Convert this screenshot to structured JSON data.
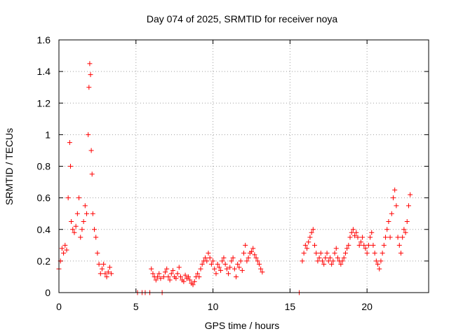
{
  "chart_data": {
    "type": "scatter",
    "title": "Day 074 of 2025, SRMTID for receiver noya",
    "xlabel": "GPS time / hours",
    "ylabel": "SRMTID / TECUs",
    "xlim": [
      0,
      24
    ],
    "ylim": [
      0,
      1.6
    ],
    "xticks": [
      0,
      5,
      10,
      15,
      20
    ],
    "xtick_labels": [
      "0",
      "5",
      "10",
      "15",
      "20"
    ],
    "yticks": [
      0,
      0.2,
      0.4,
      0.6,
      0.8,
      1,
      1.2,
      1.4,
      1.6
    ],
    "ytick_labels": [
      "0",
      "0.2",
      "0.4",
      "0.6",
      "0.8",
      "1",
      "1.2",
      "1.4",
      "1.6"
    ],
    "grid": true,
    "marker": "+",
    "color": "#ff0000",
    "series": [
      {
        "name": "SRMTID",
        "x": [
          0.0,
          0.1,
          0.2,
          0.3,
          0.4,
          0.5,
          0.6,
          0.7,
          0.75,
          0.8,
          0.9,
          1.0,
          1.1,
          1.2,
          1.3,
          1.4,
          1.5,
          1.6,
          1.7,
          1.8,
          1.9,
          1.95,
          2.0,
          2.05,
          2.1,
          2.15,
          2.2,
          2.3,
          2.4,
          2.5,
          2.6,
          2.7,
          2.8,
          2.9,
          3.0,
          3.1,
          3.2,
          3.3,
          3.4,
          5.1,
          5.4,
          5.6,
          5.9,
          6.0,
          6.1,
          6.2,
          6.3,
          6.4,
          6.5,
          6.6,
          6.7,
          6.8,
          6.9,
          7.0,
          7.1,
          7.2,
          7.3,
          7.4,
          7.5,
          7.6,
          7.7,
          7.8,
          7.9,
          8.0,
          8.1,
          8.2,
          8.3,
          8.4,
          8.5,
          8.6,
          8.7,
          8.8,
          8.9,
          9.0,
          9.1,
          9.2,
          9.3,
          9.4,
          9.5,
          9.6,
          9.7,
          9.8,
          9.9,
          10.0,
          10.1,
          10.2,
          10.3,
          10.4,
          10.5,
          10.6,
          10.7,
          10.8,
          10.9,
          11.0,
          11.1,
          11.2,
          11.3,
          11.4,
          11.5,
          11.6,
          11.7,
          11.8,
          11.9,
          12.0,
          12.1,
          12.2,
          12.3,
          12.4,
          12.5,
          12.6,
          12.7,
          12.8,
          12.9,
          13.0,
          13.1,
          13.2,
          15.6,
          15.8,
          15.9,
          16.0,
          16.1,
          16.2,
          16.3,
          16.4,
          16.5,
          16.6,
          16.7,
          16.8,
          16.9,
          17.0,
          17.1,
          17.2,
          17.3,
          17.4,
          17.5,
          17.6,
          17.7,
          17.8,
          17.9,
          18.0,
          18.1,
          18.2,
          18.3,
          18.4,
          18.5,
          18.6,
          18.7,
          18.8,
          18.9,
          19.0,
          19.1,
          19.2,
          19.3,
          19.4,
          19.5,
          19.6,
          19.7,
          19.8,
          19.9,
          20.0,
          20.1,
          20.2,
          20.3,
          20.4,
          20.5,
          20.6,
          20.7,
          20.8,
          20.9,
          21.0,
          21.1,
          21.2,
          21.3,
          21.4,
          21.5,
          21.6,
          21.7,
          21.8,
          21.9,
          22.0,
          22.1,
          22.2,
          22.3,
          22.4,
          22.5,
          22.6,
          22.7,
          22.8
        ],
        "y": [
          0.15,
          0.2,
          0.28,
          0.25,
          0.3,
          0.27,
          0.6,
          0.95,
          0.8,
          0.45,
          0.4,
          0.38,
          0.42,
          0.5,
          0.6,
          0.35,
          0.4,
          0.45,
          0.55,
          0.5,
          1.0,
          1.3,
          1.45,
          1.38,
          0.9,
          0.75,
          0.5,
          0.4,
          0.35,
          0.25,
          0.18,
          0.12,
          0.15,
          0.18,
          0.12,
          0.1,
          0.13,
          0.16,
          0.12,
          0.0,
          0.0,
          0.0,
          0.0,
          0.15,
          0.12,
          0.1,
          0.08,
          0.1,
          0.12,
          0.09,
          0.0,
          0.1,
          0.13,
          0.15,
          0.1,
          0.08,
          0.12,
          0.14,
          0.1,
          0.09,
          0.12,
          0.16,
          0.1,
          0.08,
          0.07,
          0.11,
          0.09,
          0.1,
          0.08,
          0.06,
          0.05,
          0.07,
          0.1,
          0.12,
          0.1,
          0.15,
          0.18,
          0.2,
          0.22,
          0.2,
          0.25,
          0.22,
          0.18,
          0.2,
          0.15,
          0.12,
          0.18,
          0.16,
          0.14,
          0.2,
          0.22,
          0.18,
          0.15,
          0.12,
          0.16,
          0.2,
          0.22,
          0.15,
          0.1,
          0.18,
          0.16,
          0.2,
          0.14,
          0.25,
          0.3,
          0.2,
          0.22,
          0.25,
          0.26,
          0.28,
          0.24,
          0.22,
          0.2,
          0.18,
          0.15,
          0.13,
          0.0,
          0.2,
          0.25,
          0.3,
          0.28,
          0.32,
          0.35,
          0.38,
          0.4,
          0.3,
          0.25,
          0.2,
          0.22,
          0.25,
          0.2,
          0.18,
          0.22,
          0.25,
          0.2,
          0.22,
          0.18,
          0.2,
          0.25,
          0.28,
          0.22,
          0.2,
          0.18,
          0.2,
          0.22,
          0.25,
          0.28,
          0.3,
          0.35,
          0.38,
          0.4,
          0.36,
          0.38,
          0.35,
          0.3,
          0.32,
          0.35,
          0.3,
          0.28,
          0.25,
          0.3,
          0.35,
          0.38,
          0.3,
          0.25,
          0.2,
          0.18,
          0.15,
          0.2,
          0.25,
          0.3,
          0.35,
          0.4,
          0.45,
          0.35,
          0.5,
          0.6,
          0.65,
          0.55,
          0.35,
          0.3,
          0.25,
          0.35,
          0.4,
          0.38,
          0.45,
          0.55,
          0.62
        ]
      }
    ]
  }
}
